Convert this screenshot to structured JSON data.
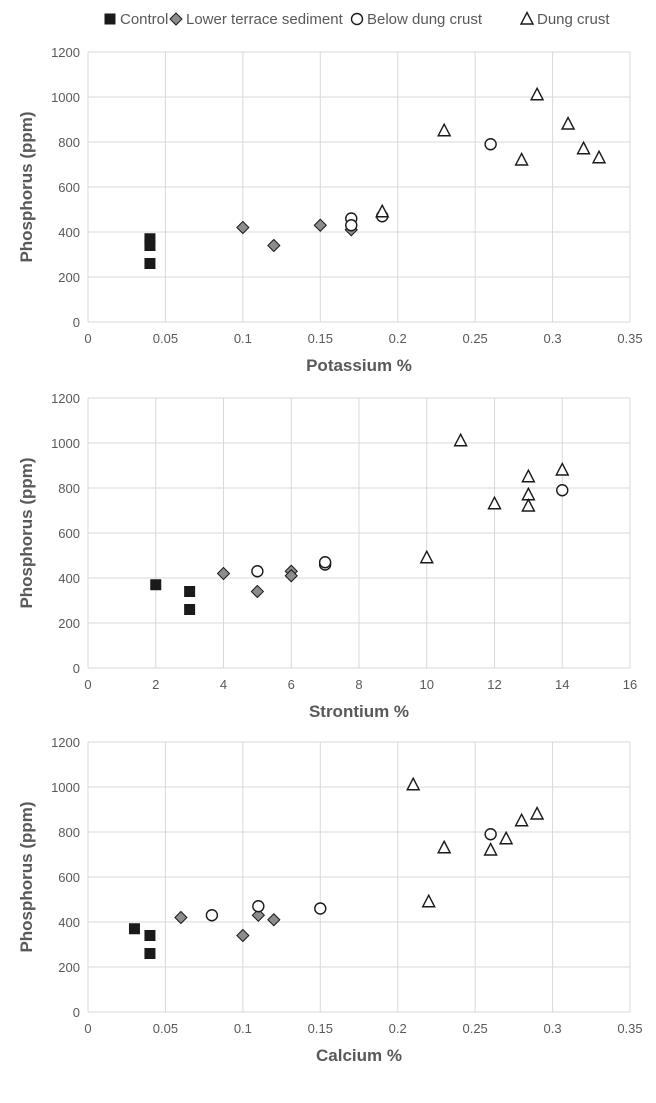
{
  "legend": {
    "position": "top",
    "entries": [
      {
        "name": "Control",
        "marker": "square",
        "fill": "#1a1a1a"
      },
      {
        "name": "Lower terrace sediment",
        "marker": "diamond",
        "fill": "#8c8c8c"
      },
      {
        "name": "Below dung crust",
        "marker": "circle",
        "fill": "#ffffff"
      },
      {
        "name": "Dung crust",
        "marker": "triangle",
        "fill": "#ffffff"
      }
    ]
  },
  "colors": {
    "axis_text": "#595959",
    "gridline": "#d9d9d9",
    "marker_stroke": "#1a1a1a"
  },
  "chart_data": [
    {
      "type": "scatter",
      "title": "",
      "xlabel": "Potassium %",
      "ylabel": "Phosphorus (ppm)",
      "xlim": [
        0,
        0.35
      ],
      "ylim": [
        0,
        1200
      ],
      "xticks": [
        0,
        0.05,
        0.1,
        0.15,
        0.2,
        0.25,
        0.3,
        0.35
      ],
      "xtick_labels": [
        "0",
        "0.05",
        "0.1",
        "0.15",
        "0.2",
        "0.25",
        "0.3",
        "0.35"
      ],
      "yticks": [
        0,
        200,
        400,
        600,
        800,
        1000,
        1200
      ],
      "ytick_labels": [
        "0",
        "200",
        "400",
        "600",
        "800",
        "1000",
        "1200"
      ],
      "grid": true,
      "series": [
        {
          "name": "Control",
          "points": [
            [
              0.04,
              370
            ],
            [
              0.04,
              340
            ],
            [
              0.04,
              260
            ]
          ]
        },
        {
          "name": "Lower terrace sediment",
          "points": [
            [
              0.1,
              420
            ],
            [
              0.12,
              340
            ],
            [
              0.15,
              430
            ],
            [
              0.17,
              410
            ]
          ]
        },
        {
          "name": "Below dung crust",
          "points": [
            [
              0.17,
              460
            ],
            [
              0.17,
              430
            ],
            [
              0.19,
              470
            ],
            [
              0.26,
              790
            ]
          ]
        },
        {
          "name": "Dung crust",
          "points": [
            [
              0.19,
              490
            ],
            [
              0.23,
              850
            ],
            [
              0.28,
              720
            ],
            [
              0.29,
              1010
            ],
            [
              0.31,
              880
            ],
            [
              0.32,
              770
            ],
            [
              0.33,
              730
            ]
          ]
        }
      ]
    },
    {
      "type": "scatter",
      "title": "",
      "xlabel": "Strontium %",
      "ylabel": "Phosphorus (ppm)",
      "xlim": [
        0,
        16
      ],
      "ylim": [
        0,
        1200
      ],
      "xticks": [
        0,
        2,
        4,
        6,
        8,
        10,
        12,
        14,
        16
      ],
      "xtick_labels": [
        "0",
        "2",
        "4",
        "6",
        "8",
        "10",
        "12",
        "14",
        "16"
      ],
      "yticks": [
        0,
        200,
        400,
        600,
        800,
        1000,
        1200
      ],
      "ytick_labels": [
        "0",
        "200",
        "400",
        "600",
        "800",
        "1000",
        "1200"
      ],
      "grid": true,
      "series": [
        {
          "name": "Control",
          "points": [
            [
              2,
              370
            ],
            [
              3,
              340
            ],
            [
              3,
              260
            ]
          ]
        },
        {
          "name": "Lower terrace sediment",
          "points": [
            [
              4,
              420
            ],
            [
              5,
              340
            ],
            [
              6,
              430
            ],
            [
              6,
              410
            ]
          ]
        },
        {
          "name": "Below dung crust",
          "points": [
            [
              5,
              430
            ],
            [
              7,
              460
            ],
            [
              7,
              470
            ],
            [
              14,
              790
            ]
          ]
        },
        {
          "name": "Dung crust",
          "points": [
            [
              10,
              490
            ],
            [
              11,
              1010
            ],
            [
              12,
              730
            ],
            [
              13,
              850
            ],
            [
              13,
              770
            ],
            [
              13,
              720
            ],
            [
              14,
              880
            ]
          ]
        }
      ]
    },
    {
      "type": "scatter",
      "title": "",
      "xlabel": "Calcium %",
      "ylabel": "Phosphorus (ppm)",
      "xlim": [
        0,
        0.35
      ],
      "ylim": [
        0,
        1200
      ],
      "xticks": [
        0,
        0.05,
        0.1,
        0.15,
        0.2,
        0.25,
        0.3,
        0.35
      ],
      "xtick_labels": [
        "0",
        "0.05",
        "0.1",
        "0.15",
        "0.2",
        "0.25",
        "0.3",
        "0.35"
      ],
      "yticks": [
        0,
        200,
        400,
        600,
        800,
        1000,
        1200
      ],
      "ytick_labels": [
        "0",
        "200",
        "400",
        "600",
        "800",
        "1000",
        "1200"
      ],
      "grid": true,
      "series": [
        {
          "name": "Control",
          "points": [
            [
              0.03,
              370
            ],
            [
              0.04,
              340
            ],
            [
              0.04,
              260
            ]
          ]
        },
        {
          "name": "Lower terrace sediment",
          "points": [
            [
              0.06,
              420
            ],
            [
              0.1,
              340
            ],
            [
              0.11,
              430
            ],
            [
              0.12,
              410
            ]
          ]
        },
        {
          "name": "Below dung crust",
          "points": [
            [
              0.08,
              430
            ],
            [
              0.11,
              470
            ],
            [
              0.15,
              460
            ],
            [
              0.26,
              790
            ]
          ]
        },
        {
          "name": "Dung crust",
          "points": [
            [
              0.21,
              1010
            ],
            [
              0.22,
              490
            ],
            [
              0.23,
              730
            ],
            [
              0.26,
              720
            ],
            [
              0.27,
              770
            ],
            [
              0.28,
              850
            ],
            [
              0.29,
              880
            ]
          ]
        }
      ]
    }
  ]
}
